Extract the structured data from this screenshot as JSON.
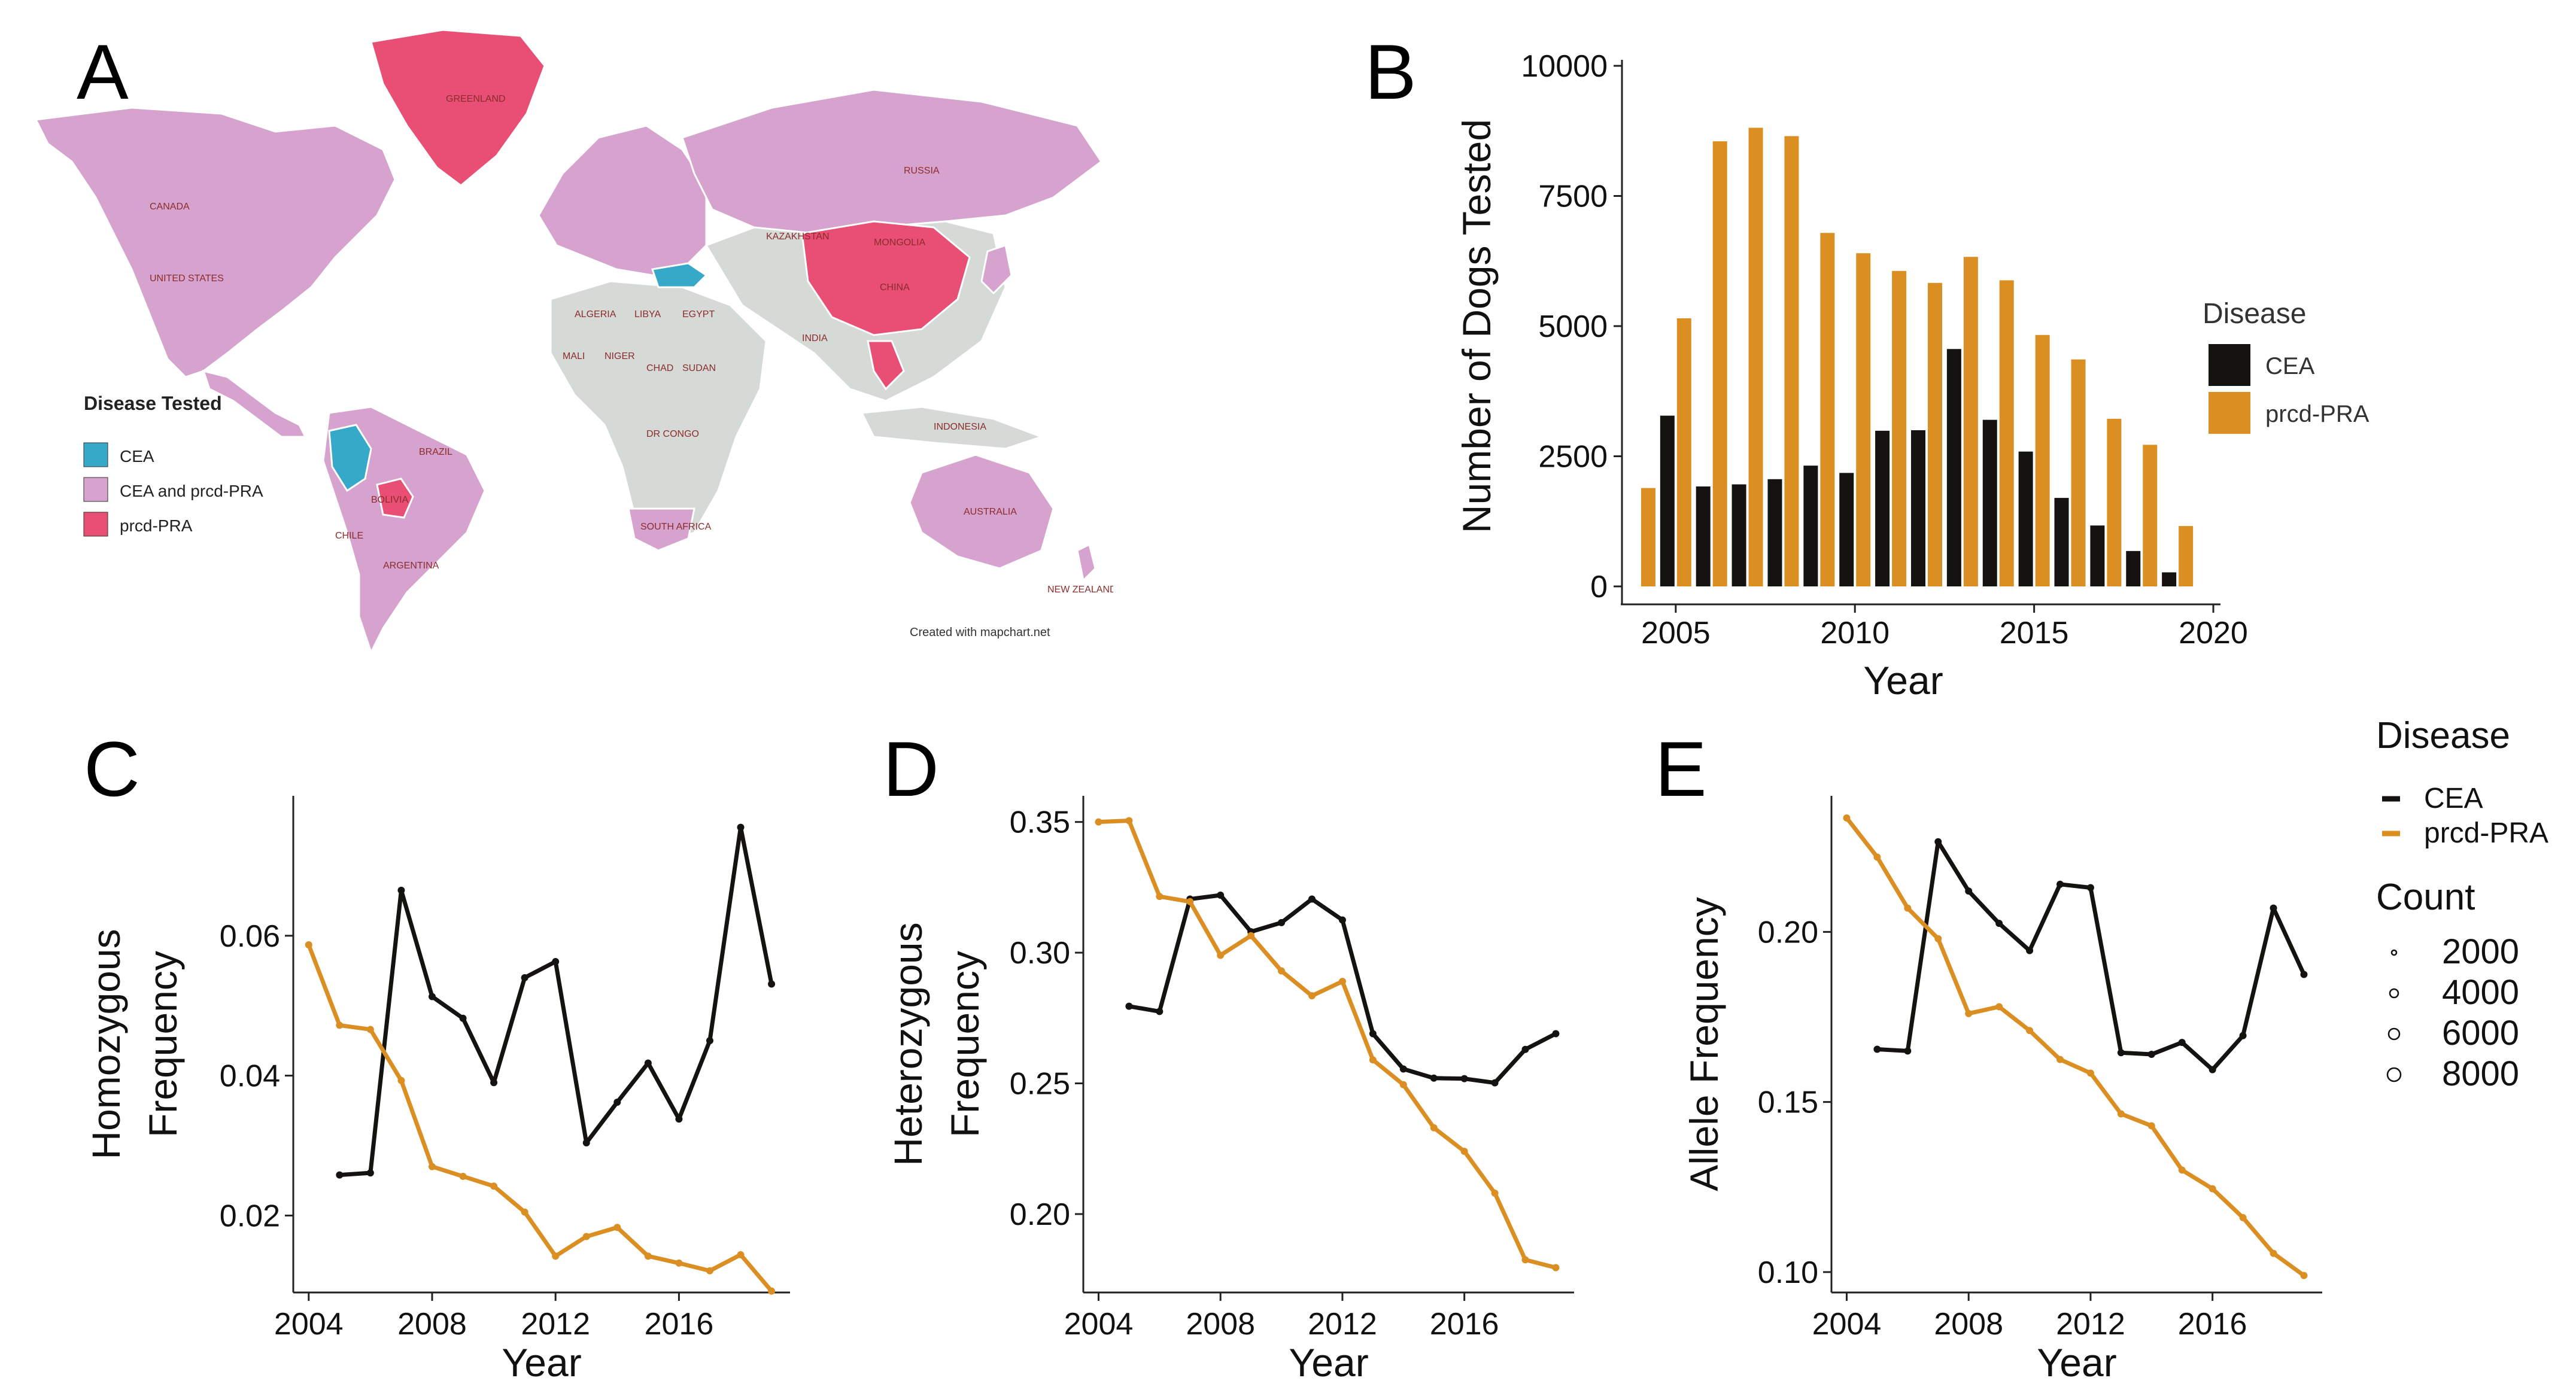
{
  "panels": {
    "a": "A",
    "b": "B",
    "c": "C",
    "d": "D",
    "e": "E"
  },
  "map": {
    "legend_title": "Disease Tested",
    "legend": [
      {
        "label": "CEA",
        "color": "#36a9c9"
      },
      {
        "label": "CEA and prcd-PRA",
        "color": "#d6a3cf"
      },
      {
        "label": "prcd-PRA",
        "color": "#e94f74"
      }
    ],
    "untested_color": "#d6dad7",
    "country_labels": [
      "GREENLAND",
      "CANADA",
      "UNITED STATES",
      "RUSSIA",
      "CHINA",
      "MONGOLIA",
      "KAZAKHSTAN",
      "INDIA",
      "BRAZIL",
      "AUSTRALIA",
      "INDONESIA",
      "NEW ZEALAND",
      "ALGERIA",
      "LIBYA",
      "EGYPT",
      "NIGER",
      "CHAD",
      "SUDAN",
      "MALI",
      "DR CONGO",
      "SOUTH AFRICA",
      "ARGENTINA",
      "CHILE",
      "BOLIVIA"
    ],
    "credit": "Created with mapchart.net"
  },
  "colors": {
    "CEA": "#151310",
    "prcd": "#db8f22"
  },
  "chart_data": [
    {
      "id": "B",
      "type": "bar",
      "title": "",
      "xlabel": "Year",
      "ylabel": "Number of Dogs Tested",
      "xlim": [
        2003.5,
        2020.2
      ],
      "ylim": [
        0,
        10000
      ],
      "xticks": [
        2005,
        2010,
        2015,
        2020
      ],
      "yticks": [
        0,
        2500,
        5000,
        7500,
        10000
      ],
      "ytick_labels": [
        "0",
        "2500",
        "5000",
        "7500",
        "10000"
      ],
      "legend_title": "Disease",
      "legend": [
        "CEA",
        "prcd-PRA"
      ],
      "categories": [
        2004,
        2005,
        2006,
        2007,
        2008,
        2009,
        2010,
        2011,
        2012,
        2013,
        2014,
        2015,
        2016,
        2017,
        2018,
        2019
      ],
      "series": [
        {
          "name": "CEA",
          "values": [
            null,
            3280,
            1920,
            1960,
            2060,
            2320,
            2180,
            2990,
            3000,
            4560,
            3200,
            2590,
            1700,
            1170,
            680,
            270
          ]
        },
        {
          "name": "prcd-PRA",
          "values": [
            1890,
            5150,
            8550,
            8810,
            8650,
            6790,
            6400,
            6060,
            5830,
            6330,
            5880,
            4830,
            4360,
            3220,
            2720,
            1160
          ]
        }
      ]
    },
    {
      "id": "C",
      "type": "line",
      "xlabel": "Year",
      "ylabel": [
        "Homozygous",
        "Frequency"
      ],
      "xlim": [
        2003.5,
        2019.6
      ],
      "ylim": [
        0.009,
        0.08
      ],
      "xticks": [
        2004,
        2008,
        2012,
        2016
      ],
      "yticks": [
        0.02,
        0.04,
        0.06
      ],
      "ytick_labels": [
        "0.02",
        "0.04",
        "0.06"
      ],
      "series": [
        {
          "name": "CEA",
          "x": [
            2005,
            2006,
            2007,
            2008,
            2009,
            2010,
            2011,
            2012,
            2013,
            2014,
            2015,
            2016,
            2017,
            2018,
            2019
          ],
          "values": [
            0.0258,
            0.0261,
            0.0665,
            0.0513,
            0.0482,
            0.039,
            0.054,
            0.0563,
            0.0304,
            0.0362,
            0.0418,
            0.0338,
            0.045,
            0.0755,
            0.0531
          ]
        },
        {
          "name": "prcd-PRA",
          "x": [
            2004,
            2005,
            2006,
            2007,
            2008,
            2009,
            2010,
            2011,
            2012,
            2013,
            2014,
            2015,
            2016,
            2017,
            2018,
            2019
          ],
          "values": [
            0.0587,
            0.0472,
            0.0466,
            0.0393,
            0.027,
            0.0256,
            0.0242,
            0.0205,
            0.0142,
            0.017,
            0.0183,
            0.0142,
            0.0132,
            0.0121,
            0.0144,
            0.0092
          ]
        }
      ]
    },
    {
      "id": "D",
      "type": "line",
      "xlabel": "Year",
      "ylabel": [
        "Heterozygous",
        "Frequency"
      ],
      "xlim": [
        2003.5,
        2019.6
      ],
      "ylim": [
        0.17,
        0.36
      ],
      "xticks": [
        2004,
        2008,
        2012,
        2016
      ],
      "yticks": [
        0.2,
        0.25,
        0.3,
        0.35
      ],
      "ytick_labels": [
        "0.20",
        "0.25",
        "0.30",
        "0.35"
      ],
      "series": [
        {
          "name": "CEA",
          "x": [
            2005,
            2006,
            2007,
            2008,
            2009,
            2010,
            2011,
            2012,
            2013,
            2014,
            2015,
            2016,
            2017,
            2018,
            2019
          ],
          "values": [
            0.2795,
            0.2775,
            0.3205,
            0.322,
            0.308,
            0.3115,
            0.3205,
            0.3125,
            0.269,
            0.2555,
            0.252,
            0.2518,
            0.2502,
            0.263,
            0.269
          ]
        },
        {
          "name": "prcd-PRA",
          "x": [
            2004,
            2005,
            2006,
            2007,
            2008,
            2009,
            2010,
            2011,
            2012,
            2013,
            2014,
            2015,
            2016,
            2017,
            2018,
            2019
          ],
          "values": [
            0.35,
            0.3505,
            0.3215,
            0.3195,
            0.299,
            0.3065,
            0.293,
            0.2835,
            0.289,
            0.259,
            0.2495,
            0.233,
            0.224,
            0.208,
            0.1825,
            0.1795
          ]
        }
      ]
    },
    {
      "id": "E",
      "type": "line",
      "xlabel": "Year",
      "ylabel": [
        "Allele Frequency"
      ],
      "xlim": [
        2003.5,
        2019.6
      ],
      "ylim": [
        0.094,
        0.24
      ],
      "xticks": [
        2004,
        2008,
        2012,
        2016
      ],
      "yticks": [
        0.1,
        0.15,
        0.2
      ],
      "ytick_labels": [
        "0.10",
        "0.15",
        "0.20"
      ],
      "series": [
        {
          "name": "CEA",
          "x": [
            2005,
            2006,
            2007,
            2008,
            2009,
            2010,
            2011,
            2012,
            2013,
            2014,
            2015,
            2016,
            2017,
            2018,
            2019
          ],
          "values": [
            0.1655,
            0.165,
            0.2265,
            0.212,
            0.2025,
            0.1945,
            0.214,
            0.213,
            0.1645,
            0.164,
            0.1675,
            0.1595,
            0.1695,
            0.207,
            0.1875
          ]
        },
        {
          "name": "prcd-PRA",
          "x": [
            2004,
            2005,
            2006,
            2007,
            2008,
            2009,
            2010,
            2011,
            2012,
            2013,
            2014,
            2015,
            2016,
            2017,
            2018,
            2019
          ],
          "values": [
            0.2335,
            0.222,
            0.207,
            0.198,
            0.176,
            0.178,
            0.171,
            0.1625,
            0.1585,
            0.1465,
            0.143,
            0.13,
            0.1245,
            0.116,
            0.1055,
            0.099
          ]
        }
      ]
    }
  ],
  "shared_legend": {
    "disease_title": "Disease",
    "disease_items": [
      "CEA",
      "prcd-PRA"
    ],
    "count_title": "Count",
    "count_items": [
      "2000",
      "4000",
      "6000",
      "8000"
    ]
  }
}
